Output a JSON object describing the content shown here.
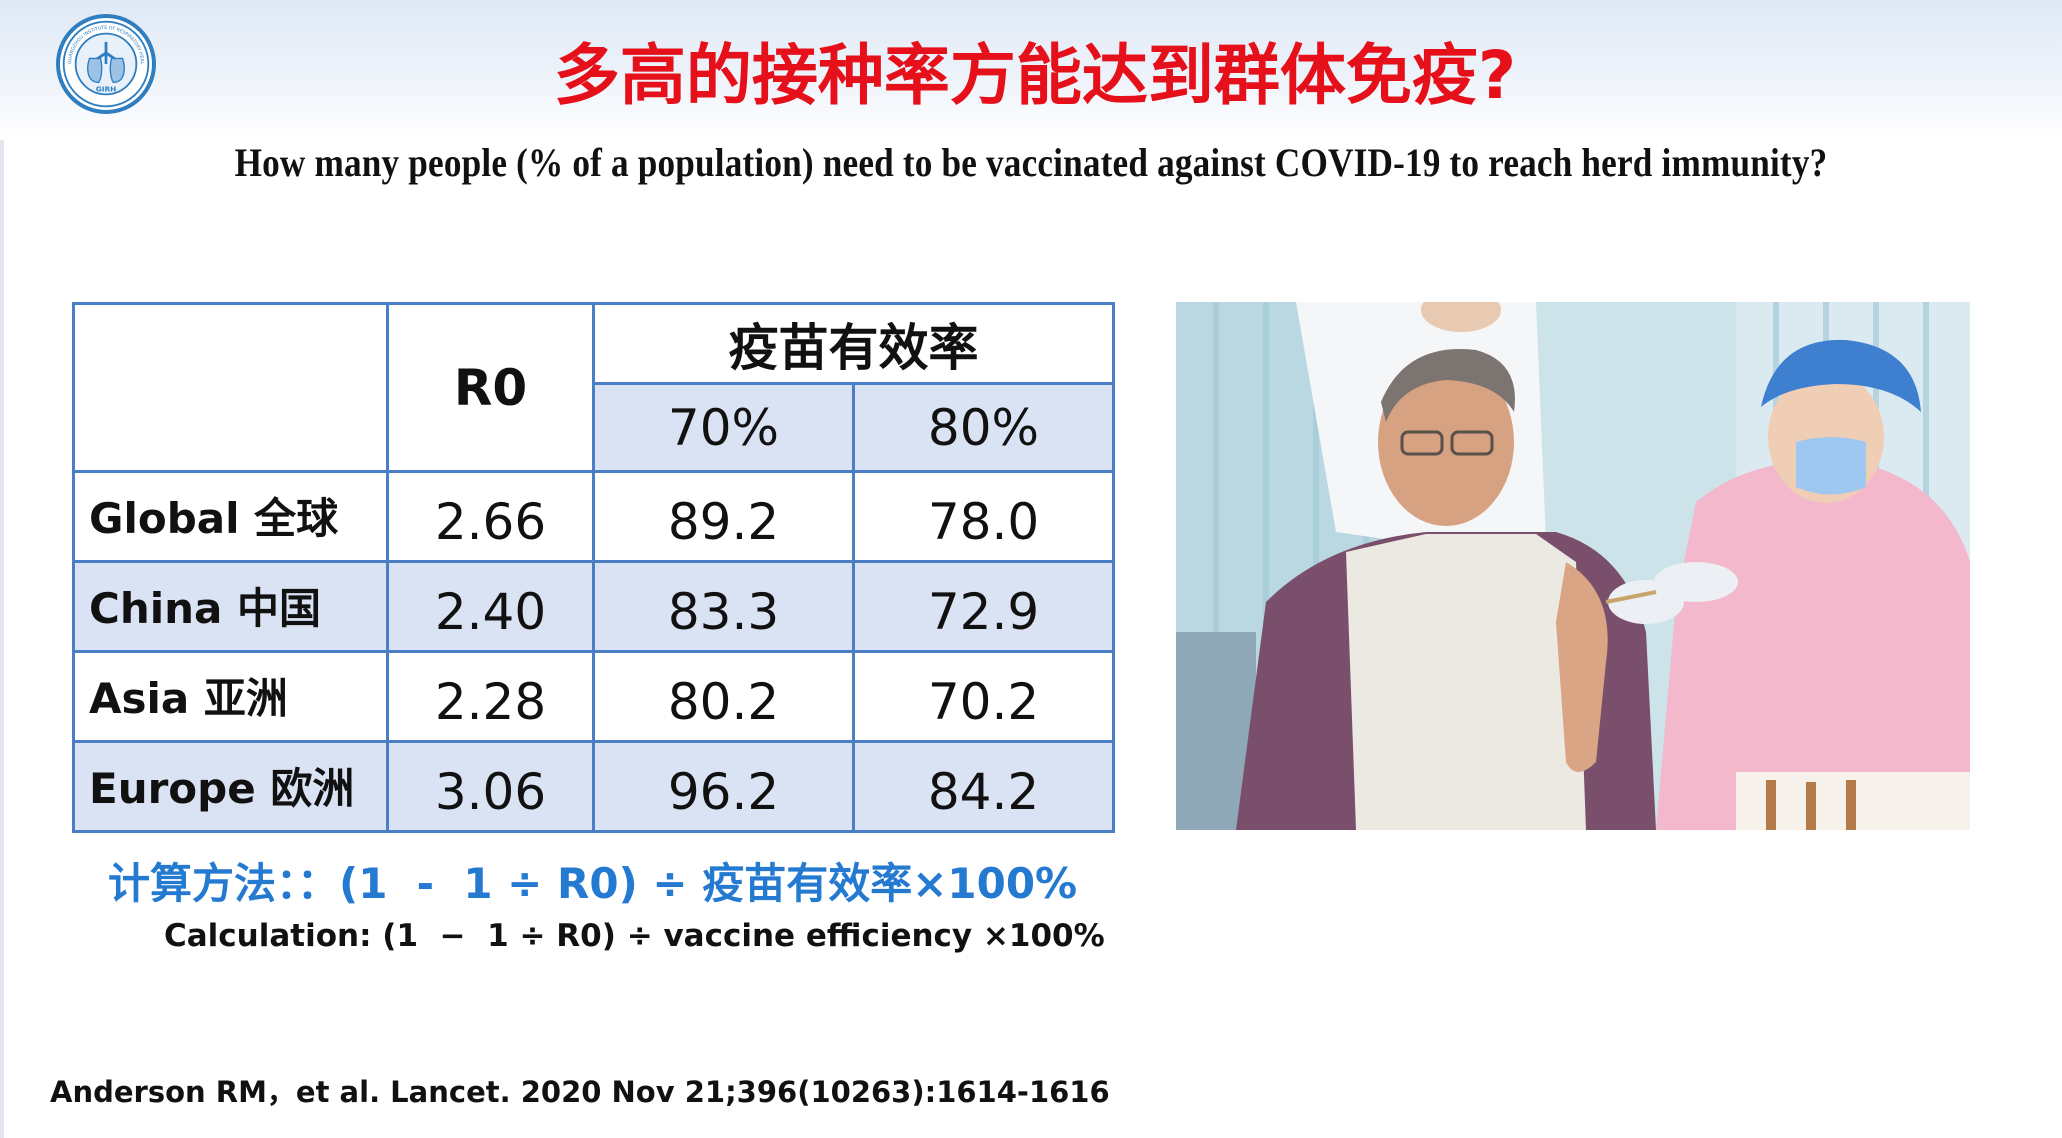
{
  "logo": {
    "text": "GIRH",
    "ring_text": "GUANGZHOU INSTITUTE OF RESPIRATORY HEALTH"
  },
  "header": {
    "title_cn": "多高的接种率方能达到群体免疫?",
    "title_en": "How many people (% of a population) need to be vaccinated against COVID-19 to reach herd immunity?"
  },
  "table": {
    "r0_header": "R0",
    "efficacy_header": "疫苗有效率",
    "efficacy_levels": [
      "70%",
      "80%"
    ],
    "rows": [
      {
        "label": "Global 全球",
        "r0": "2.66",
        "eff70": "89.2",
        "eff80": "78.0"
      },
      {
        "label": "China 中国",
        "r0": "2.40",
        "eff70": "83.3",
        "eff80": "72.9"
      },
      {
        "label": "Asia 亚洲",
        "r0": "2.28",
        "eff70": "80.2",
        "eff80": "70.2"
      },
      {
        "label": "Europe 欧洲",
        "r0": "3.06",
        "eff70": "96.2",
        "eff80": "84.2"
      }
    ]
  },
  "formula": {
    "cn": "计算方法：：(1  -  1 ÷ R0) ÷ 疫苗有效率×100%",
    "en": "Calculation: (1  −  1 ÷ R0) ÷ vaccine efficiency ×100%"
  },
  "reference": "Anderson RM，et al. Lancet. 2020 Nov 21;396(10263):1614-1616",
  "colors": {
    "title_red": "#e5101a",
    "formula_blue": "#2479d1",
    "table_border": "#4a7ec5",
    "table_shade": "#dae3f3"
  }
}
